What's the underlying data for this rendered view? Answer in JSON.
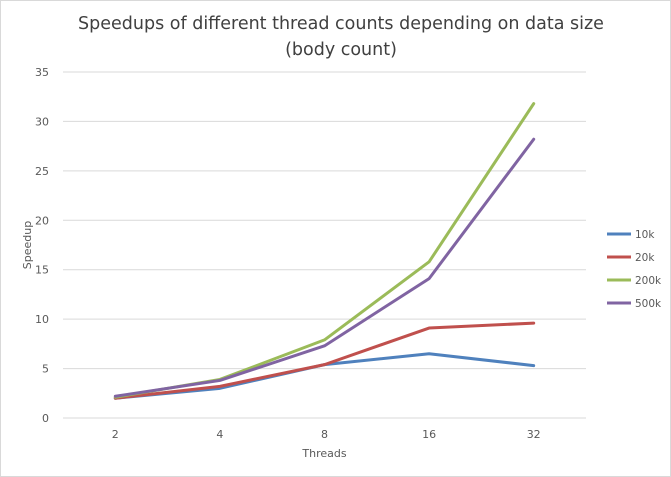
{
  "chart_data": {
    "type": "line",
    "title": "Speedups of different thread counts depending on data size (body count)",
    "xlabel": "Threads",
    "ylabel": "Speedup",
    "categories": [
      "2",
      "4",
      "8",
      "16",
      "32"
    ],
    "ylim": [
      0,
      35
    ],
    "yticks": [
      0,
      5,
      10,
      15,
      20,
      25,
      30,
      35
    ],
    "grid": true,
    "legend_position": "right",
    "series": [
      {
        "name": "10k",
        "color": "#4f81bd",
        "values": [
          2.0,
          3.0,
          5.4,
          6.5,
          5.3
        ]
      },
      {
        "name": "20k",
        "color": "#c0504d",
        "values": [
          2.0,
          3.2,
          5.4,
          9.1,
          9.6
        ]
      },
      {
        "name": "200k",
        "color": "#9bbb59",
        "values": [
          2.1,
          3.9,
          7.9,
          15.8,
          31.8
        ]
      },
      {
        "name": "500k",
        "color": "#8064a2",
        "values": [
          2.2,
          3.8,
          7.3,
          14.1,
          28.2
        ]
      }
    ]
  }
}
